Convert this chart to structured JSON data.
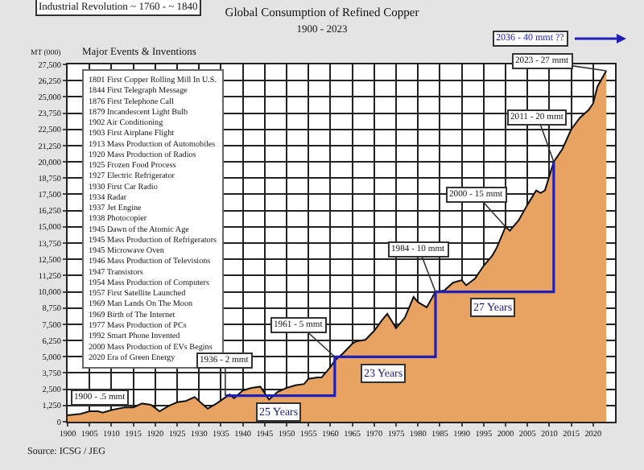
{
  "chart_data": {
    "type": "area",
    "title": "Global Consumption of Refined Copper",
    "subtitle": "1900 - 2023",
    "ylabel": "MT (000)",
    "x": [
      1900,
      1903,
      1905,
      1907,
      1908,
      1910,
      1913,
      1915,
      1917,
      1919,
      1921,
      1923,
      1925,
      1927,
      1929,
      1930,
      1932,
      1934,
      1937,
      1938,
      1940,
      1942,
      1944,
      1946,
      1948,
      1950,
      1952,
      1954,
      1955,
      1957,
      1958,
      1960,
      1961,
      1963,
      1965,
      1966,
      1968,
      1970,
      1972,
      1973,
      1975,
      1977,
      1979,
      1980,
      1982,
      1984,
      1986,
      1988,
      1990,
      1991,
      1993,
      1995,
      1997,
      1998,
      2000,
      2001,
      2003,
      2005,
      2007,
      2008,
      2009,
      2011,
      2013,
      2015,
      2017,
      2019,
      2020,
      2021,
      2023
    ],
    "series": [
      {
        "color": "#e8a262",
        "values": [
          500,
          600,
          800,
          800,
          700,
          900,
          1100,
          1100,
          1400,
          1300,
          800,
          1200,
          1500,
          1600,
          1900,
          1600,
          1000,
          1400,
          2100,
          1800,
          2400,
          2600,
          2700,
          1700,
          2300,
          2600,
          2800,
          2900,
          3300,
          3400,
          3400,
          4200,
          4700,
          5300,
          6000,
          6200,
          6300,
          7000,
          7900,
          8300,
          7200,
          8000,
          9600,
          9200,
          8800,
          10000,
          10100,
          10700,
          10900,
          10500,
          11000,
          12000,
          12800,
          13400,
          15000,
          14700,
          15500,
          16700,
          17800,
          17600,
          17800,
          20000,
          21000,
          22500,
          23400,
          24000,
          24500,
          25800,
          27000
        ]
      },
      {
        "type": "line",
        "color": "#2020b8",
        "x": [
          1936,
          1961,
          1961,
          1984,
          1984,
          2011,
          2011
        ],
        "values": [
          2000,
          2000,
          5000,
          5000,
          10000,
          10000,
          20000
        ]
      }
    ],
    "xlim": [
      1900,
      2025
    ],
    "xticks": [
      1900,
      1905,
      1910,
      1915,
      1920,
      1925,
      1930,
      1935,
      1940,
      1945,
      1950,
      1955,
      1960,
      1965,
      1970,
      1975,
      1980,
      1985,
      1990,
      1995,
      2000,
      2005,
      2010,
      2015,
      2020
    ],
    "ylim": [
      0,
      27500
    ],
    "yticks": [
      0,
      {
        "value": 1250,
        "label": "1,250"
      },
      {
        "value": 2500,
        "label": "2,500"
      },
      {
        "value": 3750,
        "label": "3,750"
      },
      {
        "value": 5000,
        "label": "5,000"
      },
      {
        "value": 6250,
        "label": "6,250"
      },
      {
        "value": 7500,
        "label": "7,500"
      },
      {
        "value": 8750,
        "label": "8,750"
      },
      {
        "value": 10000,
        "label": "10,000"
      },
      {
        "value": 11250,
        "label": "11,250"
      },
      {
        "value": 12500,
        "label": "12,500"
      },
      {
        "value": 13750,
        "label": "13,750"
      },
      {
        "value": 15000,
        "label": "15,000"
      },
      {
        "value": 16250,
        "label": "16,250"
      },
      {
        "value": 17500,
        "label": "17,500"
      },
      {
        "value": 18750,
        "label": "18,750"
      },
      {
        "value": 20000,
        "label": "20,000"
      },
      {
        "value": 21250,
        "label": "21,250"
      },
      {
        "value": 22500,
        "label": "22,500"
      },
      {
        "value": 23750,
        "label": "23,750"
      },
      {
        "value": 25000,
        "label": "25,000"
      },
      {
        "value": 26250,
        "label": "26,250"
      },
      {
        "value": 27500,
        "label": "27,500"
      }
    ],
    "grid": true,
    "annotations": [
      "Industrial Revolution ~ 1760 - ~ 1840",
      "2036 - 40 mmt ??",
      "Major Events & Inventions",
      "1801 First Copper Rolling Mill In U.S.",
      "1844 First Telegraph Message",
      "1876 First Telephone Call",
      "1879 Incandescent Light Bulb",
      "1902 Air Conditioning",
      "1903 First Airplane Flight",
      "1913 Mass Production of Automobiles",
      "1920 Mass Production of Radios",
      "1925 Frozen Food Process",
      "1927 Electric Refrigerator",
      "1930 First Car Radio",
      "1934 Radar",
      "1937 Jet Engine",
      "1938 Photocopier",
      "1945 Dawn of the Atomic Age",
      "1945 Mass Production of Refrigerators",
      "1945 Microwave Oven",
      "1946 Mass Production of Televisions",
      "1947 Transistors",
      "1954 Mass Production of Computers",
      "1957 First Satellite Launched",
      "1969 Man Lands On The Moon",
      "1969 Birth of The Internet",
      "1977 Mass Production of PCs",
      "1992 Smart Phone Invented",
      "2000 Mass Production of EVs Begins",
      "2020 Era of Green Energy",
      "Source: ICSG / JEG",
      {
        "text": "1900 - .5 mmt",
        "x": 1900,
        "y": 500
      },
      {
        "text": "1936 - 2 mmt",
        "x": 1936,
        "y": 2000
      },
      {
        "text": "1961 - 5 mmt",
        "x": 1961,
        "y": 5000
      },
      {
        "text": "1984 - 10 mmt",
        "x": 1984,
        "y": 10000
      },
      {
        "text": "2000 - 15 mmt",
        "x": 2000,
        "y": 15000
      },
      {
        "text": "2011 - 20 mmt",
        "x": 2011,
        "y": 20000
      },
      {
        "text": "2023 - 27 mmt",
        "x": 2023,
        "y": 27000
      },
      {
        "text": "25 Years",
        "x": 1948,
        "y": 2000
      },
      {
        "text": "23 Years",
        "x": 1972,
        "y": 5000
      },
      {
        "text": "27 Years",
        "x": 1997,
        "y": 10000
      }
    ]
  }
}
